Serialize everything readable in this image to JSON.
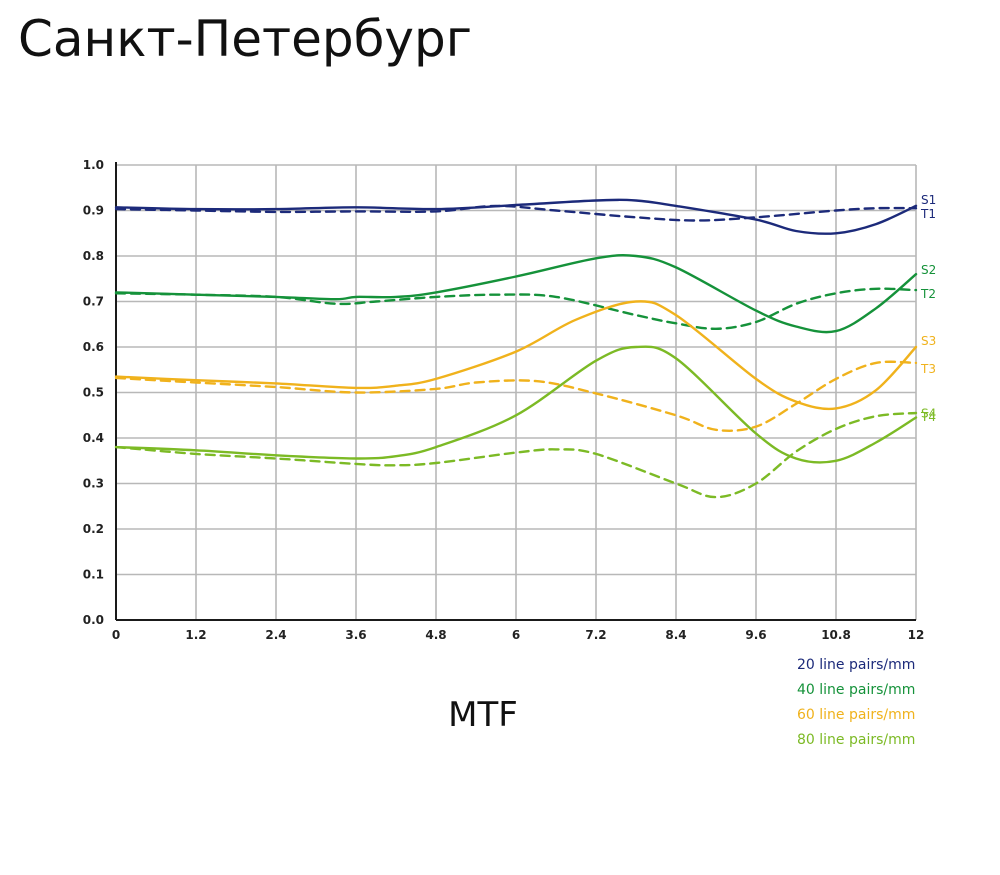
{
  "page_title": "Санкт-Петербург",
  "caption": "MTF",
  "colors": {
    "line_20": "#1c2a7a",
    "line_40": "#15923a",
    "line_60": "#f0b21c",
    "line_80": "#7cba25",
    "grid": "#b8b8b8",
    "axis": "#1a1a1a"
  },
  "legend": [
    {
      "label": "20 line pairs/mm",
      "color": "#1c2a7a"
    },
    {
      "label": "40 line pairs/mm",
      "color": "#15923a"
    },
    {
      "label": "60 line pairs/mm",
      "color": "#f0b21c"
    },
    {
      "label": "80 line pairs/mm",
      "color": "#7cba25"
    }
  ],
  "chart_data": {
    "type": "line",
    "xlim": [
      0,
      12
    ],
    "ylim": [
      0,
      1
    ],
    "x_ticks": [
      "0",
      "1.2",
      "2.4",
      "3.6",
      "4.8",
      "6",
      "7.2",
      "8.4",
      "9.6",
      "10.8",
      "12"
    ],
    "y_ticks": [
      "0.0",
      "0.1",
      "0.2",
      "0.3",
      "0.4",
      "0.5",
      "0.6",
      "0.7",
      "0.8",
      "0.9",
      "1.0"
    ],
    "grid": true,
    "series": [
      {
        "name": "S1",
        "group": "20 line pairs/mm",
        "style": "solid",
        "color": "#1c2a7a",
        "points": [
          [
            0,
            0.907
          ],
          [
            1.2,
            0.903
          ],
          [
            2.4,
            0.903
          ],
          [
            3.6,
            0.907
          ],
          [
            4.8,
            0.903
          ],
          [
            6,
            0.912
          ],
          [
            7.2,
            0.922
          ],
          [
            7.8,
            0.922
          ],
          [
            8.4,
            0.91
          ],
          [
            9.6,
            0.88
          ],
          [
            10.2,
            0.855
          ],
          [
            10.8,
            0.85
          ],
          [
            11.4,
            0.87
          ],
          [
            12,
            0.91
          ]
        ]
      },
      {
        "name": "T1",
        "group": "20 line pairs/mm",
        "style": "dashed",
        "color": "#1c2a7a",
        "points": [
          [
            0,
            0.903
          ],
          [
            1.2,
            0.9
          ],
          [
            2.4,
            0.897
          ],
          [
            3.6,
            0.898
          ],
          [
            4.8,
            0.898
          ],
          [
            5.7,
            0.91
          ],
          [
            6.6,
            0.9
          ],
          [
            7.8,
            0.885
          ],
          [
            8.7,
            0.878
          ],
          [
            9.6,
            0.885
          ],
          [
            10.8,
            0.9
          ],
          [
            11.4,
            0.905
          ],
          [
            12,
            0.905
          ]
        ]
      },
      {
        "name": "S2",
        "group": "40 line pairs/mm",
        "style": "solid",
        "color": "#15923a",
        "points": [
          [
            0,
            0.72
          ],
          [
            1.2,
            0.715
          ],
          [
            2.4,
            0.71
          ],
          [
            3.3,
            0.705
          ],
          [
            3.6,
            0.71
          ],
          [
            4.2,
            0.71
          ],
          [
            4.8,
            0.72
          ],
          [
            6,
            0.755
          ],
          [
            7.2,
            0.795
          ],
          [
            7.8,
            0.8
          ],
          [
            8.4,
            0.775
          ],
          [
            9.6,
            0.68
          ],
          [
            10.2,
            0.645
          ],
          [
            10.8,
            0.635
          ],
          [
            11.4,
            0.685
          ],
          [
            12,
            0.76
          ]
        ]
      },
      {
        "name": "T2",
        "group": "40 line pairs/mm",
        "style": "dashed",
        "color": "#15923a",
        "points": [
          [
            0,
            0.718
          ],
          [
            1.2,
            0.715
          ],
          [
            2.4,
            0.71
          ],
          [
            3.3,
            0.695
          ],
          [
            3.9,
            0.7
          ],
          [
            4.8,
            0.71
          ],
          [
            5.7,
            0.715
          ],
          [
            6.6,
            0.71
          ],
          [
            7.8,
            0.67
          ],
          [
            8.4,
            0.652
          ],
          [
            9,
            0.64
          ],
          [
            9.6,
            0.655
          ],
          [
            10.2,
            0.695
          ],
          [
            10.8,
            0.718
          ],
          [
            11.4,
            0.728
          ],
          [
            12,
            0.725
          ]
        ]
      },
      {
        "name": "S3",
        "group": "60 line pairs/mm",
        "style": "solid",
        "color": "#f0b21c",
        "points": [
          [
            0,
            0.535
          ],
          [
            1.2,
            0.527
          ],
          [
            2.4,
            0.52
          ],
          [
            3.6,
            0.51
          ],
          [
            4.2,
            0.515
          ],
          [
            4.8,
            0.53
          ],
          [
            6,
            0.59
          ],
          [
            6.9,
            0.66
          ],
          [
            7.8,
            0.7
          ],
          [
            8.4,
            0.67
          ],
          [
            9.6,
            0.53
          ],
          [
            10.2,
            0.48
          ],
          [
            10.8,
            0.465
          ],
          [
            11.4,
            0.505
          ],
          [
            12,
            0.6
          ]
        ]
      },
      {
        "name": "T3",
        "group": "60 line pairs/mm",
        "style": "dashed",
        "color": "#f0b21c",
        "points": [
          [
            0,
            0.532
          ],
          [
            1.2,
            0.522
          ],
          [
            2.4,
            0.512
          ],
          [
            3.6,
            0.5
          ],
          [
            4.8,
            0.508
          ],
          [
            5.4,
            0.522
          ],
          [
            6.3,
            0.525
          ],
          [
            7.2,
            0.498
          ],
          [
            8.4,
            0.45
          ],
          [
            9,
            0.418
          ],
          [
            9.6,
            0.425
          ],
          [
            10.2,
            0.475
          ],
          [
            10.8,
            0.53
          ],
          [
            11.4,
            0.565
          ],
          [
            12,
            0.565
          ]
        ]
      },
      {
        "name": "S4",
        "group": "80 line pairs/mm",
        "style": "solid",
        "color": "#7cba25",
        "points": [
          [
            0,
            0.38
          ],
          [
            1.2,
            0.373
          ],
          [
            2.4,
            0.362
          ],
          [
            3.6,
            0.355
          ],
          [
            4.2,
            0.36
          ],
          [
            4.8,
            0.38
          ],
          [
            6,
            0.45
          ],
          [
            7.2,
            0.57
          ],
          [
            7.8,
            0.6
          ],
          [
            8.4,
            0.575
          ],
          [
            9.6,
            0.41
          ],
          [
            10.2,
            0.355
          ],
          [
            10.8,
            0.35
          ],
          [
            11.4,
            0.39
          ],
          [
            12,
            0.445
          ]
        ]
      },
      {
        "name": "T4",
        "group": "80 line pairs/mm",
        "style": "dashed",
        "color": "#7cba25",
        "points": [
          [
            0,
            0.38
          ],
          [
            1.2,
            0.365
          ],
          [
            2.4,
            0.355
          ],
          [
            3.6,
            0.343
          ],
          [
            4.2,
            0.34
          ],
          [
            4.8,
            0.345
          ],
          [
            6,
            0.368
          ],
          [
            6.6,
            0.375
          ],
          [
            7.2,
            0.365
          ],
          [
            8.4,
            0.3
          ],
          [
            9,
            0.27
          ],
          [
            9.6,
            0.3
          ],
          [
            10.2,
            0.37
          ],
          [
            10.8,
            0.42
          ],
          [
            11.4,
            0.448
          ],
          [
            12,
            0.455
          ]
        ]
      }
    ]
  }
}
